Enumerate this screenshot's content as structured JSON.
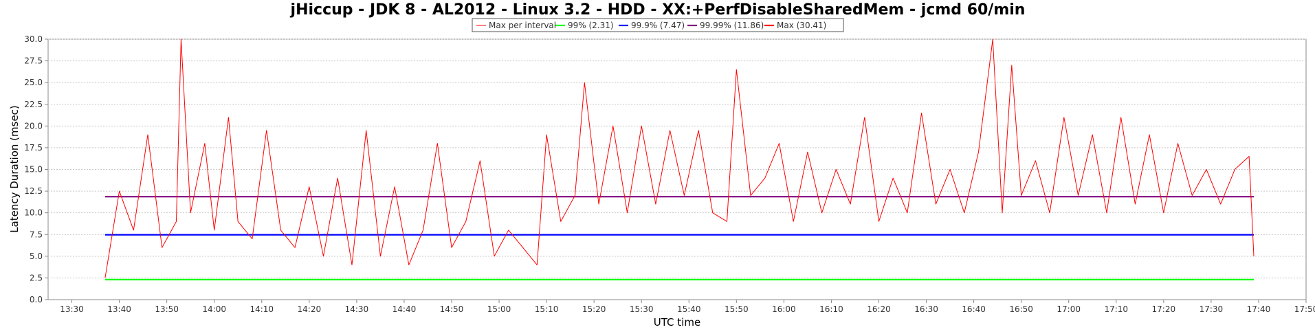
{
  "chart_data": {
    "type": "line",
    "title": "jHiccup - JDK 8 - AL2012 - Linux 3.2 - HDD - XX:+PerfDisableSharedMem - jcmd 60/min",
    "xlabel": "UTC time",
    "ylabel": "Latency Duration (msec)",
    "xlim": [
      "13:25",
      "17:50"
    ],
    "ylim": [
      0,
      30
    ],
    "x_ticks": [
      "13:30",
      "13:40",
      "13:50",
      "14:00",
      "14:10",
      "14:20",
      "14:30",
      "14:40",
      "14:50",
      "15:00",
      "15:10",
      "15:20",
      "15:30",
      "15:40",
      "15:50",
      "16:00",
      "16:10",
      "16:20",
      "16:30",
      "16:40",
      "16:50",
      "17:00",
      "17:10",
      "17:20",
      "17:30",
      "17:40",
      "17:50"
    ],
    "y_ticks": [
      "0.0",
      "2.5",
      "5.0",
      "7.5",
      "10.0",
      "12.5",
      "15.0",
      "17.5",
      "20.0",
      "22.5",
      "25.0",
      "27.5",
      "30.0"
    ],
    "grid": true,
    "legend_position": "top-center",
    "series": [
      {
        "name": "Max per interval",
        "color": "#ff0000",
        "line": "thin",
        "x": [
          "13:37",
          "13:40",
          "13:43",
          "13:46",
          "13:49",
          "13:52",
          "13:53",
          "13:55",
          "13:58",
          "14:00",
          "14:03",
          "14:05",
          "14:08",
          "14:11",
          "14:14",
          "14:17",
          "14:20",
          "14:23",
          "14:26",
          "14:29",
          "14:32",
          "14:35",
          "14:38",
          "14:41",
          "14:44",
          "14:47",
          "14:50",
          "14:53",
          "14:56",
          "14:59",
          "15:02",
          "15:05",
          "15:08",
          "15:10",
          "15:13",
          "15:16",
          "15:18",
          "15:21",
          "15:24",
          "15:27",
          "15:30",
          "15:33",
          "15:36",
          "15:39",
          "15:42",
          "15:45",
          "15:48",
          "15:50",
          "15:53",
          "15:56",
          "15:59",
          "16:02",
          "16:05",
          "16:08",
          "16:11",
          "16:14",
          "16:17",
          "16:20",
          "16:23",
          "16:26",
          "16:29",
          "16:32",
          "16:35",
          "16:38",
          "16:41",
          "16:44",
          "16:46",
          "16:48",
          "16:50",
          "16:53",
          "16:56",
          "16:59",
          "17:02",
          "17:05",
          "17:08",
          "17:11",
          "17:14",
          "17:17",
          "17:20",
          "17:23",
          "17:26",
          "17:29",
          "17:32",
          "17:35",
          "17:38",
          "17:39"
        ],
        "values": [
          2.5,
          12.5,
          8.0,
          19.0,
          6.0,
          9.0,
          30.0,
          10.0,
          18.0,
          8.0,
          21.0,
          9.0,
          7.0,
          19.5,
          8.0,
          6.0,
          13.0,
          5.0,
          14.0,
          4.0,
          19.5,
          5.0,
          13.0,
          4.0,
          8.0,
          18.0,
          6.0,
          9.0,
          16.0,
          5.0,
          8.0,
          6.0,
          4.0,
          19.0,
          9.0,
          12.0,
          25.0,
          11.0,
          20.0,
          10.0,
          20.0,
          11.0,
          19.5,
          12.0,
          19.5,
          10.0,
          9.0,
          26.5,
          12.0,
          14.0,
          18.0,
          9.0,
          17.0,
          10.0,
          15.0,
          11.0,
          21.0,
          9.0,
          14.0,
          10.0,
          21.5,
          11.0,
          15.0,
          10.0,
          17.0,
          30.0,
          10.0,
          27.0,
          12.0,
          16.0,
          10.0,
          21.0,
          12.0,
          19.0,
          10.0,
          21.0,
          11.0,
          19.0,
          10.0,
          18.0,
          12.0,
          15.0,
          11.0,
          15.0,
          16.5,
          5.0
        ]
      },
      {
        "name": "99% (2.31)",
        "color": "#00ff00",
        "x": [
          "13:37",
          "17:39"
        ],
        "values": [
          2.31,
          2.31
        ]
      },
      {
        "name": "99.9% (7.47)",
        "color": "#0000ff",
        "x": [
          "13:37",
          "17:39"
        ],
        "values": [
          7.47,
          7.47
        ]
      },
      {
        "name": "99.99% (11.86)",
        "color": "#800080",
        "x": [
          "13:37",
          "17:39"
        ],
        "values": [
          11.86,
          11.86
        ]
      },
      {
        "name": "Max (30.41)",
        "color": "#ff0000",
        "line": "thick",
        "x": [],
        "values": []
      }
    ]
  }
}
